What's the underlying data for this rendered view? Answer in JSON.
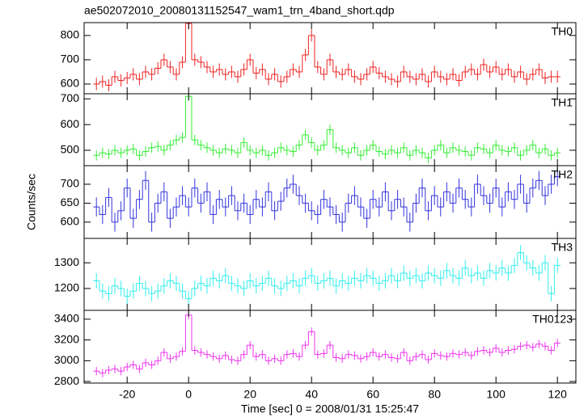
{
  "chart_data": [
    {
      "type": "line",
      "title": "ae502072010_20080131152547_wam1_trn_4band_short.qdp",
      "x": [
        -30,
        -28,
        -26,
        -24,
        -22,
        -20,
        -18,
        -16,
        -14,
        -12,
        -10,
        -8,
        -6,
        -4,
        -2,
        0,
        2,
        4,
        6,
        8,
        10,
        12,
        14,
        16,
        18,
        20,
        22,
        24,
        26,
        28,
        30,
        32,
        34,
        36,
        38,
        40,
        42,
        44,
        46,
        48,
        50,
        52,
        54,
        56,
        58,
        60,
        62,
        64,
        66,
        68,
        70,
        72,
        74,
        76,
        78,
        80,
        82,
        84,
        86,
        88,
        90,
        92,
        94,
        96,
        98,
        100,
        102,
        104,
        106,
        108,
        110,
        112,
        114,
        116,
        118,
        120
      ],
      "series": [
        {
          "name": "TH0",
          "color": "#ee2222",
          "error": 25,
          "values": [
            600,
            610,
            595,
            630,
            615,
            625,
            640,
            620,
            650,
            640,
            665,
            700,
            670,
            640,
            690,
            850,
            700,
            690,
            670,
            650,
            660,
            640,
            650,
            630,
            660,
            700,
            645,
            660,
            620,
            640,
            610,
            630,
            660,
            650,
            720,
            800,
            670,
            640,
            700,
            650,
            640,
            660,
            630,
            620,
            640,
            670,
            645,
            630,
            620,
            610,
            650,
            630,
            620,
            640,
            610,
            650,
            630,
            620,
            640,
            615,
            650,
            660,
            640,
            680,
            650,
            670,
            640,
            660,
            630,
            650,
            620,
            640,
            660,
            625,
            630,
            630
          ]
        }
      ],
      "xlim": [
        -34,
        126
      ],
      "xticks": [
        -20,
        0,
        20,
        40,
        60,
        80,
        100,
        120
      ],
      "ylim": [
        560,
        853
      ],
      "yticks": [
        600,
        700,
        800
      ]
    },
    {
      "type": "line",
      "x": [
        -30,
        -28,
        -26,
        -24,
        -22,
        -20,
        -18,
        -16,
        -14,
        -12,
        -10,
        -8,
        -6,
        -4,
        -2,
        0,
        2,
        4,
        6,
        8,
        10,
        12,
        14,
        16,
        18,
        20,
        22,
        24,
        26,
        28,
        30,
        32,
        34,
        36,
        38,
        40,
        42,
        44,
        46,
        48,
        50,
        52,
        54,
        56,
        58,
        60,
        62,
        64,
        66,
        68,
        70,
        72,
        74,
        76,
        78,
        80,
        82,
        84,
        86,
        88,
        90,
        92,
        94,
        96,
        98,
        100,
        102,
        104,
        106,
        108,
        110,
        112,
        114,
        116,
        118,
        120
      ],
      "series": [
        {
          "name": "TH1",
          "color": "#33ee33",
          "error": 20,
          "values": [
            480,
            490,
            485,
            500,
            490,
            500,
            505,
            480,
            495,
            510,
            515,
            500,
            520,
            540,
            550,
            710,
            540,
            520,
            510,
            500,
            490,
            505,
            500,
            490,
            530,
            500,
            490,
            500,
            480,
            490,
            510,
            500,
            495,
            520,
            560,
            530,
            500,
            520,
            580,
            510,
            500,
            490,
            510,
            480,
            500,
            520,
            495,
            485,
            500,
            490,
            510,
            480,
            500,
            490,
            470,
            500,
            520,
            490,
            510,
            500,
            495,
            480,
            510,
            505,
            490,
            520,
            500,
            495,
            510,
            480,
            500,
            520,
            490,
            505,
            480,
            490
          ]
        }
      ],
      "xlim": [
        -34,
        126
      ],
      "xticks": [
        -20,
        0,
        20,
        40,
        60,
        80,
        100,
        120
      ],
      "ylim": [
        440,
        720
      ],
      "yticks": [
        500,
        600,
        700
      ]
    },
    {
      "type": "line",
      "ylabel": "Counts/sec",
      "x": [
        -30,
        -28,
        -26,
        -24,
        -22,
        -20,
        -18,
        -16,
        -14,
        -12,
        -10,
        -8,
        -6,
        -4,
        -2,
        0,
        2,
        4,
        6,
        8,
        10,
        12,
        14,
        16,
        18,
        20,
        22,
        24,
        26,
        28,
        30,
        32,
        34,
        36,
        38,
        40,
        42,
        44,
        46,
        48,
        50,
        52,
        54,
        56,
        58,
        60,
        62,
        64,
        66,
        68,
        70,
        72,
        74,
        76,
        78,
        80,
        82,
        84,
        86,
        88,
        90,
        92,
        94,
        96,
        98,
        100,
        102,
        104,
        106,
        108,
        110,
        112,
        114,
        116,
        118,
        120
      ],
      "series": [
        {
          "name": "TH2",
          "color": "#3333dd",
          "error": 25,
          "values": [
            640,
            620,
            665,
            600,
            630,
            690,
            610,
            660,
            710,
            600,
            650,
            680,
            610,
            640,
            670,
            640,
            690,
            650,
            680,
            620,
            660,
            640,
            670,
            630,
            650,
            620,
            660,
            640,
            680,
            630,
            655,
            690,
            700,
            670,
            650,
            630,
            620,
            660,
            640,
            620,
            600,
            650,
            670,
            640,
            610,
            660,
            640,
            680,
            630,
            660,
            640,
            600,
            650,
            690,
            630,
            670,
            640,
            680,
            650,
            690,
            660,
            640,
            700,
            670,
            650,
            690,
            640,
            680,
            660,
            700,
            650,
            690,
            710,
            670,
            700,
            720
          ]
        }
      ],
      "xlim": [
        -34,
        126
      ],
      "xticks": [
        -20,
        0,
        20,
        40,
        60,
        80,
        100,
        120
      ],
      "ylim": [
        557,
        749
      ],
      "yticks": [
        600,
        650,
        700
      ]
    },
    {
      "type": "line",
      "x": [
        -30,
        -28,
        -26,
        -24,
        -22,
        -20,
        -18,
        -16,
        -14,
        -12,
        -10,
        -8,
        -6,
        -4,
        -2,
        0,
        2,
        4,
        6,
        8,
        10,
        12,
        14,
        16,
        18,
        20,
        22,
        24,
        26,
        28,
        30,
        32,
        34,
        36,
        38,
        40,
        42,
        44,
        46,
        48,
        50,
        52,
        54,
        56,
        58,
        60,
        62,
        64,
        66,
        68,
        70,
        72,
        74,
        76,
        78,
        80,
        82,
        84,
        86,
        88,
        90,
        92,
        94,
        96,
        98,
        100,
        102,
        104,
        106,
        108,
        110,
        112,
        114,
        116,
        118,
        120
      ],
      "series": [
        {
          "name": "TH3",
          "color": "#33eeee",
          "error": 30,
          "values": [
            1230,
            1190,
            1180,
            1210,
            1200,
            1170,
            1190,
            1220,
            1200,
            1180,
            1190,
            1210,
            1230,
            1220,
            1190,
            1160,
            1200,
            1220,
            1210,
            1240,
            1230,
            1250,
            1220,
            1210,
            1200,
            1230,
            1210,
            1220,
            1240,
            1210,
            1200,
            1220,
            1230,
            1210,
            1240,
            1250,
            1220,
            1230,
            1240,
            1210,
            1230,
            1220,
            1240,
            1230,
            1250,
            1240,
            1220,
            1230,
            1250,
            1230,
            1260,
            1240,
            1250,
            1230,
            1260,
            1250,
            1240,
            1270,
            1250,
            1240,
            1280,
            1250,
            1260,
            1240,
            1270,
            1260,
            1280,
            1260,
            1290,
            1340,
            1300,
            1280,
            1260,
            1300,
            1180,
            1290
          ]
        }
      ],
      "xlim": [
        -34,
        126
      ],
      "xticks": [
        -20,
        0,
        20,
        40,
        60,
        80,
        100,
        120
      ],
      "ylim": [
        1115,
        1395
      ],
      "yticks": [
        1200,
        1300
      ]
    },
    {
      "type": "line",
      "xlabel": "Time [sec] 0 = 2008/01/31 15:25:47",
      "x": [
        -30,
        -28,
        -26,
        -24,
        -22,
        -20,
        -18,
        -16,
        -14,
        -12,
        -10,
        -8,
        -6,
        -4,
        -2,
        0,
        2,
        4,
        6,
        8,
        10,
        12,
        14,
        16,
        18,
        20,
        22,
        24,
        26,
        28,
        30,
        32,
        34,
        36,
        38,
        40,
        42,
        44,
        46,
        48,
        50,
        52,
        54,
        56,
        58,
        60,
        62,
        64,
        66,
        68,
        70,
        72,
        74,
        76,
        78,
        80,
        82,
        84,
        86,
        88,
        90,
        92,
        94,
        96,
        98,
        100,
        102,
        104,
        106,
        108,
        110,
        112,
        114,
        116,
        118,
        120
      ],
      "series": [
        {
          "name": "TH0123",
          "color": "#ee33ee",
          "error": 40,
          "values": [
            2900,
            2880,
            2910,
            2920,
            2900,
            2940,
            2960,
            2920,
            2980,
            2960,
            3000,
            3080,
            3020,
            3040,
            3090,
            3440,
            3100,
            3080,
            3060,
            3040,
            3020,
            3050,
            3010,
            3000,
            3060,
            3150,
            3040,
            3060,
            3000,
            3020,
            3000,
            3060,
            3070,
            3040,
            3150,
            3280,
            3060,
            3070,
            3150,
            3030,
            3020,
            3060,
            3050,
            3020,
            3040,
            3080,
            3040,
            3060,
            3030,
            3020,
            3080,
            3000,
            3040,
            3060,
            3010,
            3070,
            3050,
            3040,
            3070,
            3060,
            3080,
            3050,
            3090,
            3100,
            3080,
            3120,
            3080,
            3100,
            3110,
            3140,
            3150,
            3130,
            3160,
            3140,
            3100,
            3170
          ]
        }
      ],
      "xlim": [
        -34,
        126
      ],
      "xticks": [
        -20,
        0,
        20,
        40,
        60,
        80,
        100,
        120
      ],
      "ylim": [
        2785,
        3485
      ],
      "yticks": [
        2800,
        3000,
        3200,
        3400
      ]
    }
  ]
}
